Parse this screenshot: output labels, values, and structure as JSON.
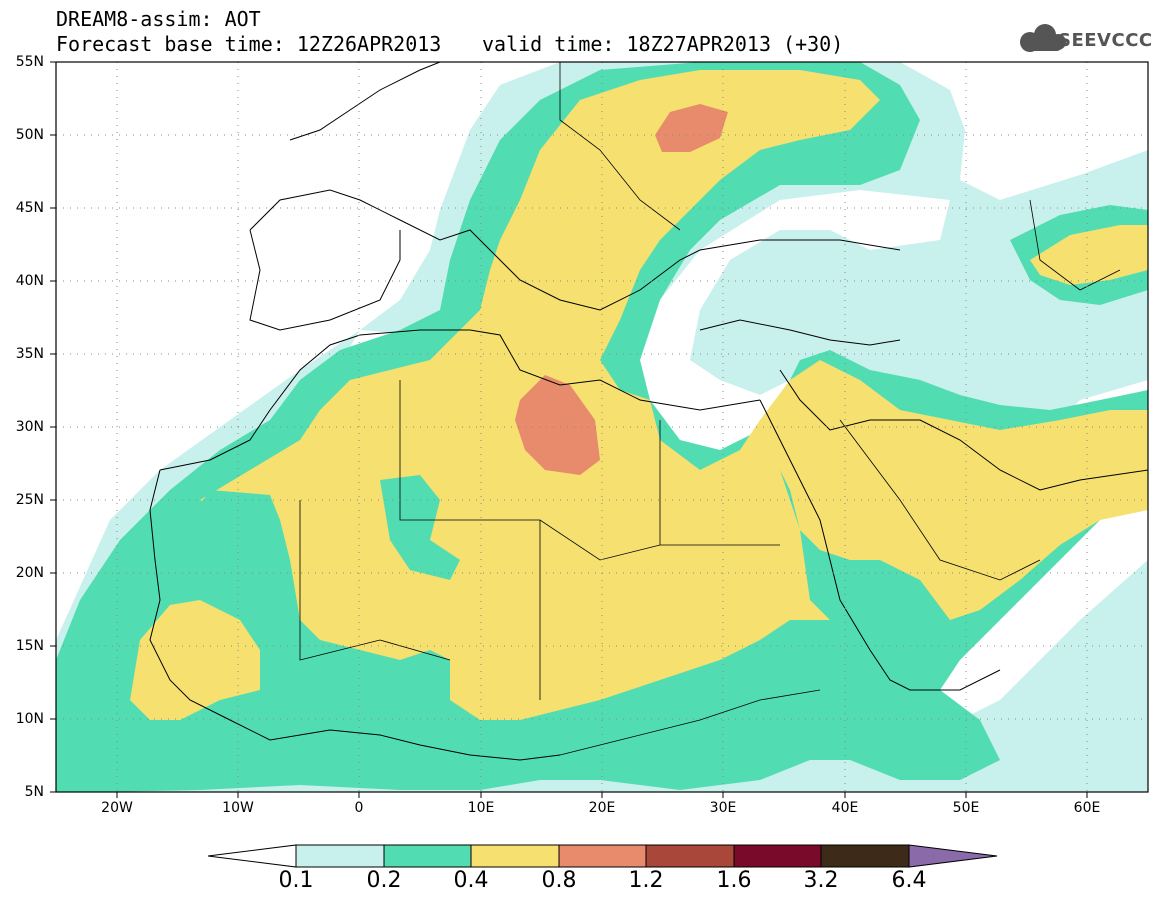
{
  "header": {
    "title": "DREAM8-assim: AOT",
    "base_time": "Forecast base time: 12Z26APR2013",
    "valid_time": "valid time: 18Z27APR2013 (+30)",
    "logo_text": "SEEVCCC"
  },
  "axes": {
    "lat_ticks": [
      "55N",
      "50N",
      "45N",
      "40N",
      "35N",
      "30N",
      "25N",
      "20N",
      "15N",
      "10N",
      "5N"
    ],
    "lon_ticks": [
      "20W",
      "10W",
      "0",
      "10E",
      "20E",
      "30E",
      "40E",
      "50E",
      "60E"
    ],
    "lat_range": [
      5,
      55
    ],
    "lon_range": [
      -25,
      65
    ],
    "grid": "dotted"
  },
  "legend": {
    "labels": [
      "0.1",
      "0.2",
      "0.4",
      "0.8",
      "1.2",
      "1.6",
      "3.2",
      "6.4"
    ],
    "colors": [
      "#ffffff",
      "#c8f0ec",
      "#52dcb2",
      "#f5e070",
      "#e88a6c",
      "#a8473a",
      "#7a0a2a",
      "#3d2a18",
      "#8a6aa8"
    ]
  },
  "colors": {
    "level_01": "#c8f0ec",
    "level_02": "#52dcb2",
    "level_04": "#f5e070",
    "level_08": "#e88a6c"
  }
}
